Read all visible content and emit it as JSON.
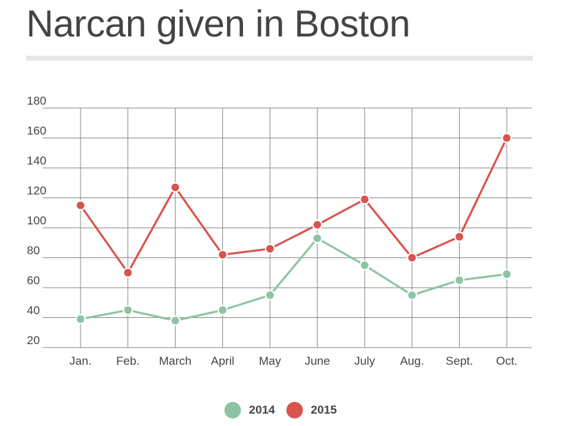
{
  "title": "Narcan given in Boston",
  "colors": {
    "series_2014": "#8cc4a3",
    "series_2015": "#d9534f",
    "grid": "#8a8a8a",
    "text": "#444444"
  },
  "chart_data": {
    "type": "line",
    "title": "Narcan given in Boston",
    "xlabel": "",
    "ylabel": "",
    "categories": [
      "Jan.",
      "Feb.",
      "March",
      "April",
      "May",
      "June",
      "July",
      "Aug.",
      "Sept.",
      "Oct."
    ],
    "y_ticks": [
      20,
      40,
      60,
      80,
      100,
      120,
      140,
      160,
      180
    ],
    "ylim": [
      20,
      180
    ],
    "grid": true,
    "legend_position": "bottom-center",
    "series": [
      {
        "name": "2014",
        "color": "#8cc4a3",
        "values": [
          39,
          45,
          38,
          45,
          55,
          93,
          75,
          55,
          65,
          69
        ]
      },
      {
        "name": "2015",
        "color": "#d9534f",
        "values": [
          115,
          70,
          127,
          82,
          86,
          102,
          119,
          80,
          94,
          160
        ]
      }
    ]
  }
}
